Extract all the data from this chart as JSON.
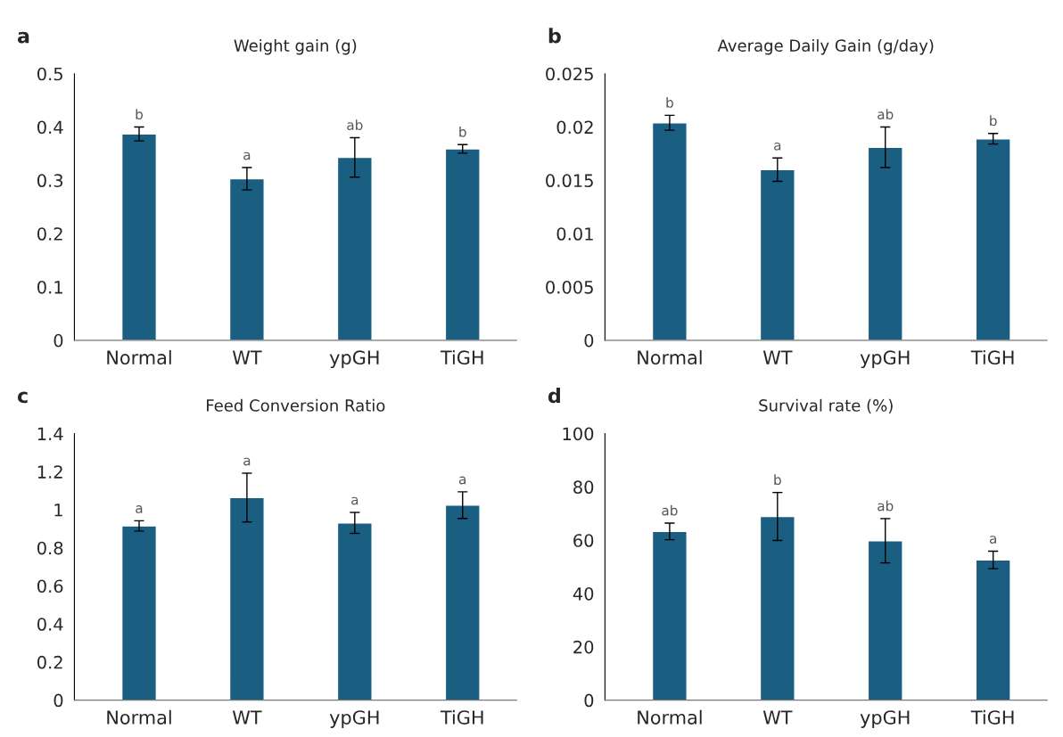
{
  "chart_data": [
    {
      "type": "bar",
      "title": "Weight gain (g)",
      "categories": [
        "Normal",
        "WT",
        "ypGH",
        "TiGH"
      ],
      "values": [
        0.387,
        0.303,
        0.343,
        0.359
      ],
      "errors": [
        0.013,
        0.021,
        0.037,
        0.008
      ],
      "color": "#1a5f82",
      "ylim": [
        0,
        0.5
      ],
      "yticks": [
        0,
        0.1,
        0.2,
        0.3,
        0.4,
        0.5
      ],
      "grid": false,
      "legend": false,
      "annotations": [
        "a",
        {
          "text": "b",
          "x": "Normal",
          "y": 0.4
        },
        {
          "text": "a",
          "x": "WT",
          "y": 0.324
        },
        {
          "text": "ab",
          "x": "ypGH",
          "y": 0.38
        },
        {
          "text": "b",
          "x": "TiGH",
          "y": 0.367
        }
      ]
    },
    {
      "type": "bar",
      "title": "Average Daily Gain (g/day)",
      "categories": [
        "Normal",
        "WT",
        "ypGH",
        "TiGH"
      ],
      "values": [
        0.0204,
        0.016,
        0.0181,
        0.0189
      ],
      "errors": [
        0.0007,
        0.0011,
        0.0019,
        0.0005
      ],
      "color": "#1a5f82",
      "ylim": [
        0,
        0.025
      ],
      "yticks": [
        0,
        0.005,
        0.01,
        0.015,
        0.02,
        0.025
      ],
      "grid": false,
      "legend": false,
      "annotations": [
        "b",
        {
          "text": "b",
          "x": "Normal",
          "y": 0.0211
        },
        {
          "text": "a",
          "x": "WT",
          "y": 0.0171
        },
        {
          "text": "ab",
          "x": "ypGH",
          "y": 0.02
        },
        {
          "text": "b",
          "x": "TiGH",
          "y": 0.0194
        }
      ]
    },
    {
      "type": "bar",
      "title": "Feed Conversion Ratio",
      "categories": [
        "Normal",
        "WT",
        "ypGH",
        "TiGH"
      ],
      "values": [
        0.915,
        1.064,
        0.931,
        1.024
      ],
      "errors": [
        0.027,
        0.128,
        0.055,
        0.07
      ],
      "color": "#1a5f82",
      "ylim": [
        0,
        1.4
      ],
      "yticks": [
        0,
        0.2,
        0.4,
        0.6,
        0.8,
        1,
        1.2,
        1.4
      ],
      "grid": false,
      "legend": false,
      "annotations": [
        "c",
        {
          "text": "a",
          "x": "Normal",
          "y": 0.942
        },
        {
          "text": "a",
          "x": "WT",
          "y": 1.192
        },
        {
          "text": "a",
          "x": "ypGH",
          "y": 0.986
        },
        {
          "text": "a",
          "x": "TiGH",
          "y": 1.094
        }
      ]
    },
    {
      "type": "bar",
      "title": "Survival rate (%)",
      "categories": [
        "Normal",
        "WT",
        "ypGH",
        "TiGH"
      ],
      "values": [
        63.3,
        68.9,
        59.8,
        52.6
      ],
      "errors": [
        3.1,
        9,
        8.3,
        3.3
      ],
      "color": "#1a5f82",
      "ylim": [
        0,
        100
      ],
      "yticks": [
        0,
        20,
        40,
        60,
        80,
        100
      ],
      "grid": false,
      "legend": false,
      "annotations": [
        "d",
        {
          "text": "ab",
          "x": "Normal",
          "y": 66.4
        },
        {
          "text": "b",
          "x": "WT",
          "y": 77.9
        },
        {
          "text": "ab",
          "x": "ypGH",
          "y": 68.1
        },
        {
          "text": "a",
          "x": "TiGH",
          "y": 55.9
        }
      ]
    }
  ]
}
